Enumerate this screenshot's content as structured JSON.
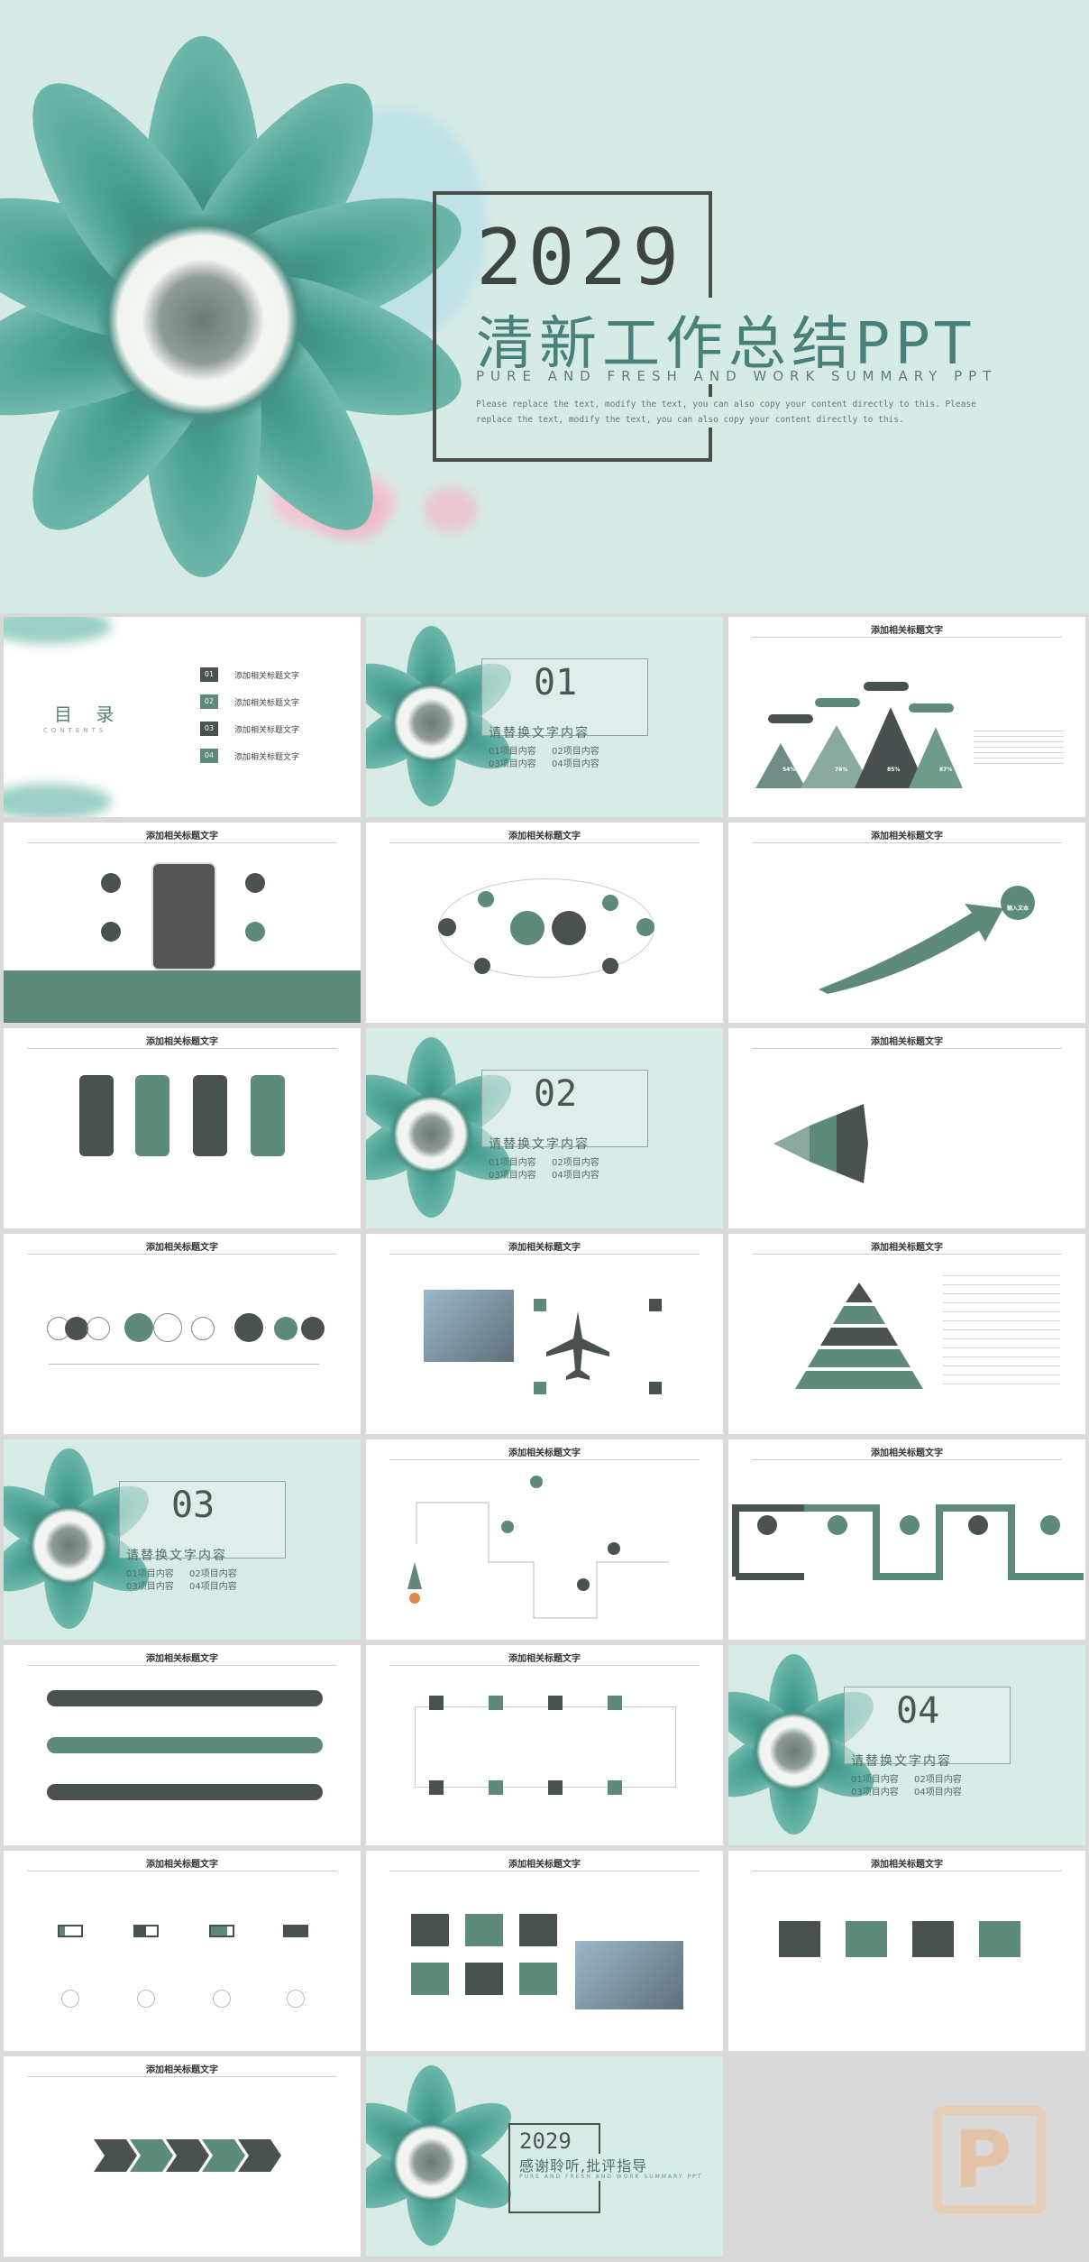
{
  "hero": {
    "year": "2029",
    "title": "清新工作总结PPT",
    "subtitle": "PURE AND FRESH AND WORK SUMMARY PPT",
    "description": "Please replace the text, modify the text, you can also copy your content directly to this. Please replace the text, modify the text, you can also copy your content directly to this."
  },
  "toc": {
    "label": "目 录",
    "sub": "CONTENTS",
    "items": [
      {
        "num": "01",
        "text": "添加相关标题文字"
      },
      {
        "num": "02",
        "text": "添加相关标题文字"
      },
      {
        "num": "03",
        "text": "添加相关标题文字"
      },
      {
        "num": "04",
        "text": "添加相关标题文字"
      }
    ]
  },
  "section": {
    "text": "请替换文字内容",
    "items": [
      "01项目内容",
      "02项目内容",
      "03项目内容",
      "04项目内容"
    ],
    "nums": [
      "01",
      "02",
      "03",
      "04"
    ]
  },
  "slide_title": "添加相关标题文字",
  "mountains": {
    "values": [
      "54%",
      "76%",
      "85%",
      "87%"
    ]
  },
  "arrow_slide": {
    "label": "输入文本"
  },
  "closing": {
    "year": "2029",
    "title": "感谢聆听,批评指导",
    "subtitle": "PURE AND FRESH AND WORK SUMMARY PPT"
  },
  "colors": {
    "dark": "#4a5250",
    "green": "#5e8a79",
    "mint": "#d6ebe6"
  }
}
